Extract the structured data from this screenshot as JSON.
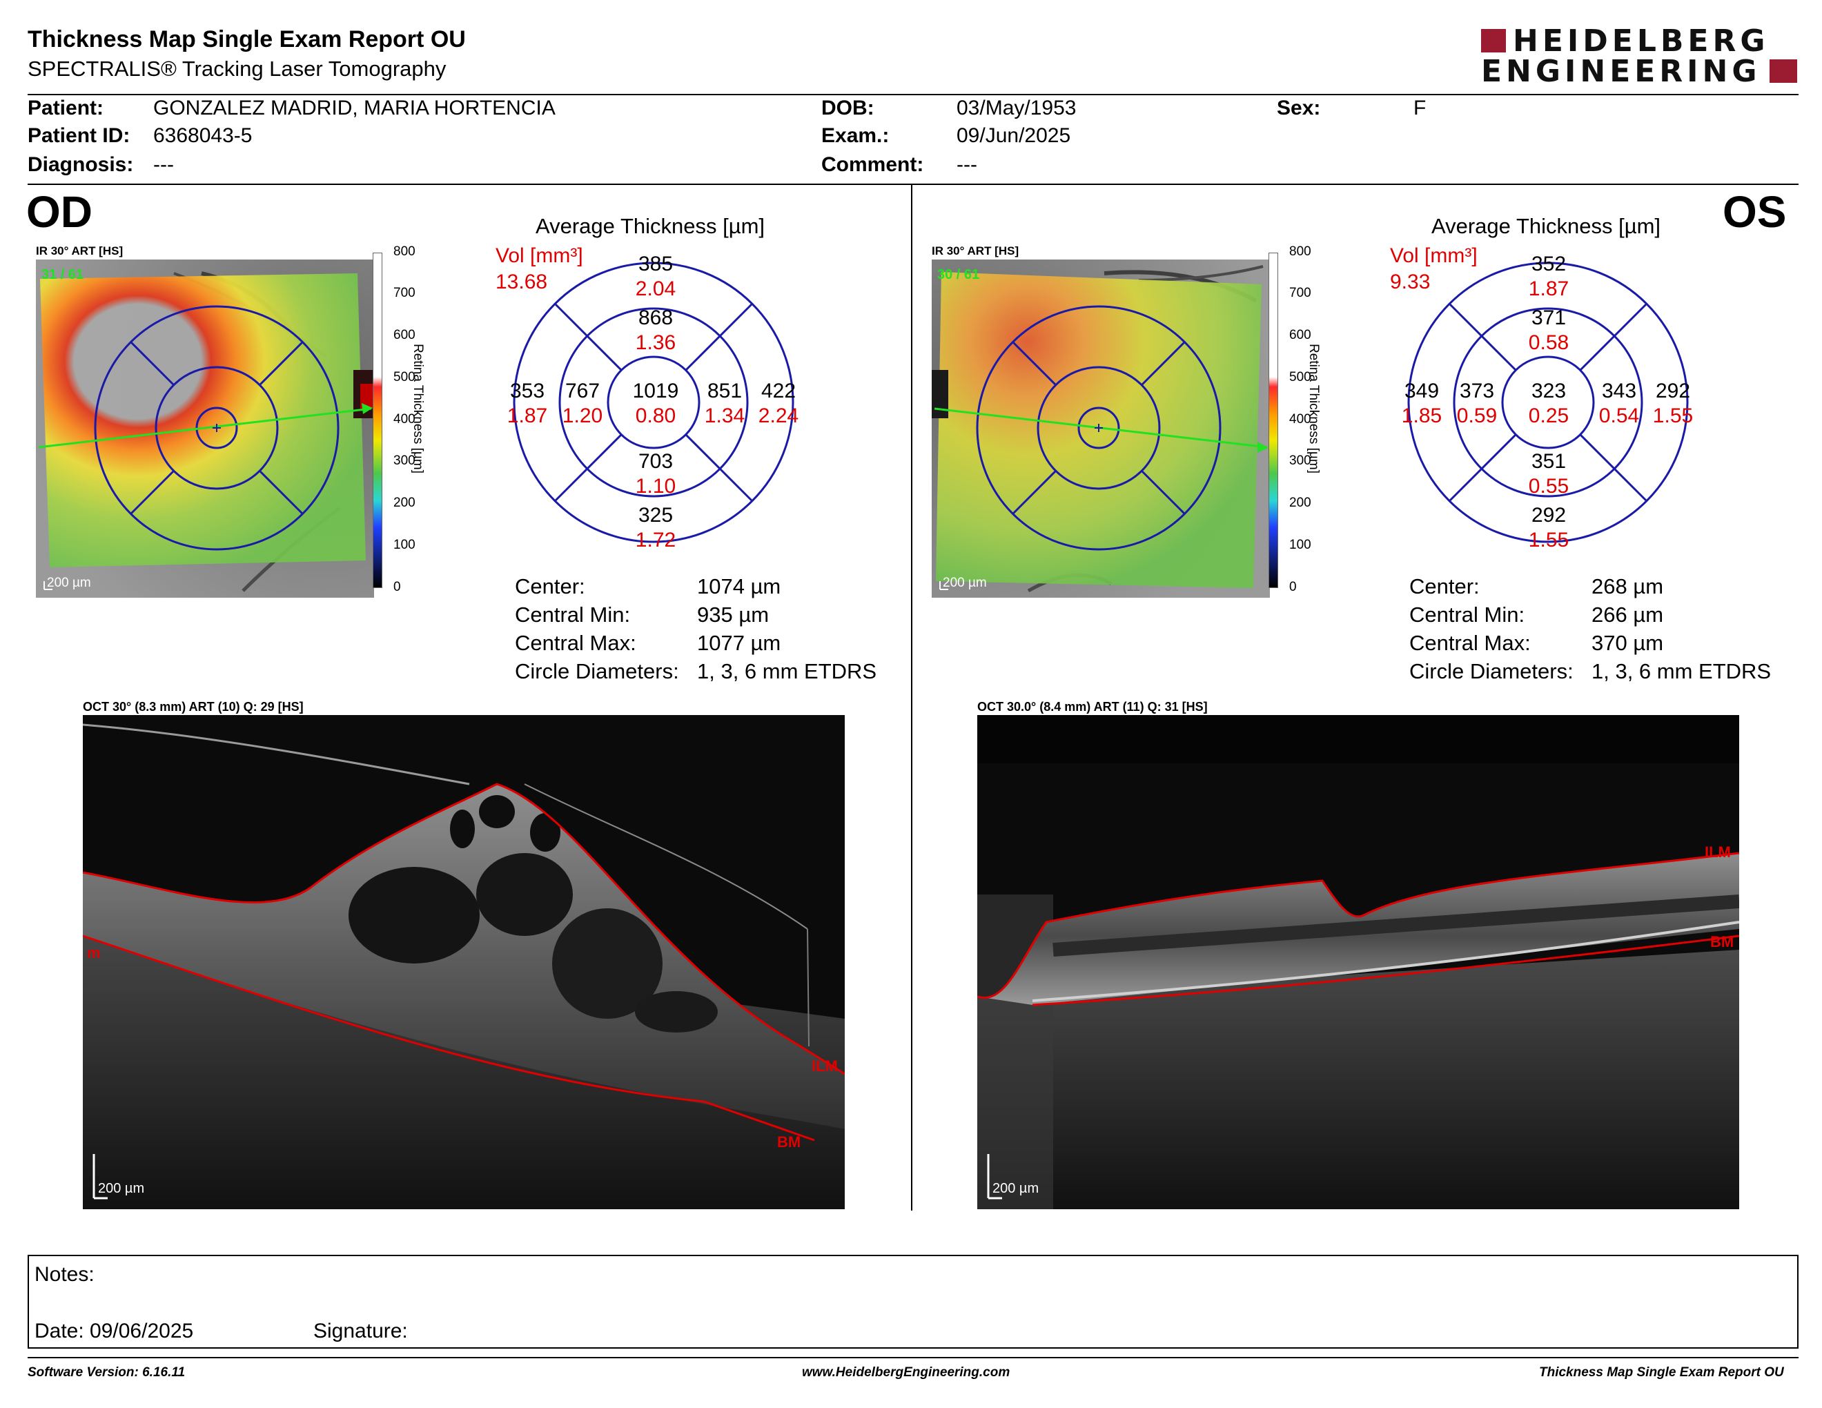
{
  "header": {
    "title": "Thickness Map Single Exam Report OU",
    "subtitle": "SPECTRALIS® Tracking Laser Tomography",
    "logo_line1": "HEIDELBERG",
    "logo_line2": "ENGINEERING"
  },
  "patient": {
    "patient_label": "Patient:",
    "patient_value": "GONZALEZ MADRID, MARIA HORTENCIA",
    "id_label": "Patient ID:",
    "id_value": "6368043-5",
    "diagnosis_label": "Diagnosis:",
    "diagnosis_value": "---",
    "dob_label": "DOB:",
    "dob_value": "03/May/1953",
    "exam_label": "Exam.:",
    "exam_value": "09/Jun/2025",
    "comment_label": "Comment:",
    "comment_value": "---",
    "sex_label": "Sex:",
    "sex_value": "F"
  },
  "scale": {
    "ticks": [
      "800",
      "700",
      "600",
      "500",
      "400",
      "300",
      "200",
      "100",
      "0"
    ],
    "label": "Retina Thickness [µm]"
  },
  "od": {
    "eye": "OD",
    "ir_title": "IR 30° ART [HS]",
    "ir_counter": "31 / 61",
    "ir_scalebar": "200 µm",
    "avg_title": "Average Thickness [µm]",
    "vol_label": "Vol [mm³]",
    "vol_value": "13.68",
    "grid": {
      "outer_top": {
        "t": "385",
        "v": "2.04"
      },
      "inner_top": {
        "t": "868",
        "v": "1.36"
      },
      "outer_left": {
        "t": "353",
        "v": "1.87"
      },
      "inner_left": {
        "t": "767",
        "v": "1.20"
      },
      "center": {
        "t": "1019",
        "v": "0.80"
      },
      "inner_right": {
        "t": "851",
        "v": "1.34"
      },
      "outer_right": {
        "t": "422",
        "v": "2.24"
      },
      "inner_bottom": {
        "t": "703",
        "v": "1.10"
      },
      "outer_bottom": {
        "t": "325",
        "v": "1.72"
      }
    },
    "stats": [
      {
        "label": "Center:",
        "value": "1074 µm"
      },
      {
        "label": "Central Min:",
        "value": "935 µm"
      },
      {
        "label": "Central Max:",
        "value": "1077 µm"
      },
      {
        "label": "Circle Diameters:",
        "value": "1, 3, 6 mm ETDRS"
      }
    ],
    "oct_title": "OCT 30° (8.3 mm) ART (10) Q: 29 [HS]",
    "oct_scalebar": "200 µm",
    "ilm_label": "ILM",
    "bm_label": "BM",
    "edge_label": "m"
  },
  "os": {
    "eye": "OS",
    "ir_title": "IR 30° ART [HS]",
    "ir_counter": "30 / 61",
    "ir_scalebar": "200 µm",
    "avg_title": "Average Thickness [µm]",
    "vol_label": "Vol [mm³]",
    "vol_value": "9.33",
    "grid": {
      "outer_top": {
        "t": "352",
        "v": "1.87"
      },
      "inner_top": {
        "t": "371",
        "v": "0.58"
      },
      "outer_left": {
        "t": "349",
        "v": "1.85"
      },
      "inner_left": {
        "t": "373",
        "v": "0.59"
      },
      "center": {
        "t": "323",
        "v": "0.25"
      },
      "inner_right": {
        "t": "343",
        "v": "0.54"
      },
      "outer_right": {
        "t": "292",
        "v": "1.55"
      },
      "inner_bottom": {
        "t": "351",
        "v": "0.55"
      },
      "outer_bottom": {
        "t": "292",
        "v": "1.55"
      }
    },
    "stats": [
      {
        "label": "Center:",
        "value": "268 µm"
      },
      {
        "label": "Central Min:",
        "value": "266 µm"
      },
      {
        "label": "Central Max:",
        "value": "370 µm"
      },
      {
        "label": "Circle Diameters:",
        "value": "1, 3, 6 mm ETDRS"
      }
    ],
    "oct_title": "OCT 30.0° (8.4 mm) ART (11) Q: 31 [HS]",
    "oct_scalebar": "200 µm",
    "ilm_label": "ILM",
    "bm_label": "BM"
  },
  "notes": {
    "notes_label": "Notes:",
    "date_label": "Date: 09/06/2025",
    "signature_label": "Signature:"
  },
  "footer": {
    "software": "Software Version: 6.16.11",
    "website": "www.HeidelbergEngineering.com",
    "report": "Thickness Map Single Exam Report OU"
  },
  "colors": {
    "brand_red": "#9b1b30",
    "value_red": "#e00000",
    "grid_blue": "#1a1aa8"
  }
}
